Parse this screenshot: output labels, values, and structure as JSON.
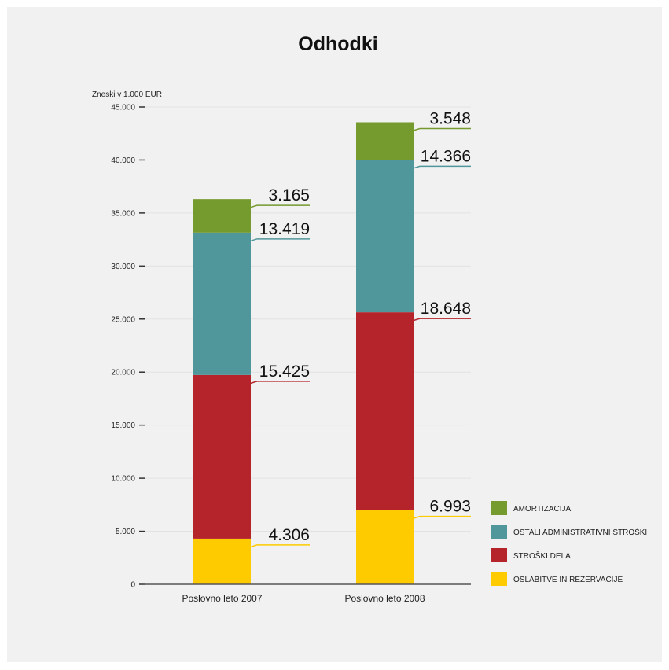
{
  "chart_data": {
    "type": "bar",
    "stacked": true,
    "title": "Odhodki",
    "ylabel": "Zneski v 1.000 EUR",
    "xlabel": "",
    "ylim": [
      0,
      45000
    ],
    "yticks": [
      0,
      5000,
      10000,
      15000,
      20000,
      25000,
      30000,
      35000,
      40000,
      45000
    ],
    "ytick_labels": [
      "0",
      "5.000",
      "10.000",
      "15.000",
      "20.000",
      "25.000",
      "30.000",
      "35.000",
      "40.000",
      "45.000"
    ],
    "grid": true,
    "legend_position": "bottom-right",
    "categories": [
      "Poslovno leto 2007",
      "Poslovno leto 2008"
    ],
    "series": [
      {
        "name": "OSLABITVE IN REZERVACIJE",
        "values": [
          4306,
          6993
        ],
        "labels": [
          "4.306",
          "6.993"
        ],
        "color": "#fecb00"
      },
      {
        "name": "STROŠKI DELA",
        "values": [
          15425,
          18648
        ],
        "labels": [
          "15.425",
          "18.648"
        ],
        "color": "#b5242b"
      },
      {
        "name": "OSTALI ADMINISTRATIVNI STROŠKI",
        "values": [
          13419,
          14366
        ],
        "labels": [
          "13.419",
          "14.366"
        ],
        "color": "#50979b"
      },
      {
        "name": "AMORTIZACIJA",
        "values": [
          3165,
          3548
        ],
        "labels": [
          "3.165",
          "3.548"
        ],
        "color": "#759a2d"
      }
    ],
    "legend_order": [
      "AMORTIZACIJA",
      "OSTALI ADMINISTRATIVNI STROŠKI",
      "STROŠKI DELA",
      "OSLABITVE IN REZERVACIJE"
    ]
  }
}
